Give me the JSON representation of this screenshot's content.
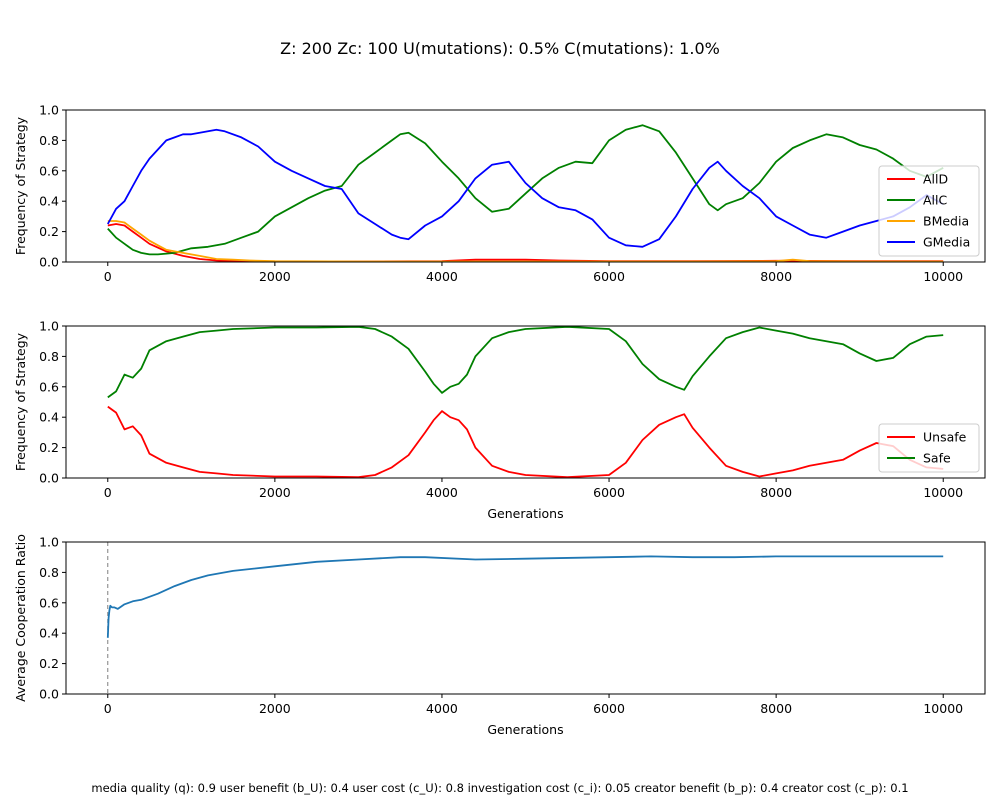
{
  "figure": {
    "title": "Z: 200  Zc: 100  U(mutations): 0.5%  C(mutations): 1.0%",
    "footer": "media quality (q): 0.9  user benefit (b_U): 0.4  user cost (c_U): 0.8  investigation cost (c_i): 0.05  creator benefit (b_p): 0.4  creator cost (c_p): 0.1"
  },
  "chart_data": [
    {
      "type": "line",
      "ylabel": "Frequency of Strategy",
      "xlabel": "",
      "xlim": [
        -500,
        10500
      ],
      "ylim": [
        0,
        1
      ],
      "xticks": [
        0,
        2000,
        4000,
        6000,
        8000,
        10000
      ],
      "yticks": [
        0.0,
        0.2,
        0.4,
        0.6,
        0.8,
        1.0
      ],
      "legend": "right",
      "series": [
        {
          "name": "AllD",
          "color": "#ff0000",
          "x": [
            0,
            100,
            200,
            300,
            400,
            500,
            700,
            900,
            1100,
            1300,
            1500,
            2000,
            3000,
            4000,
            4400,
            5000,
            5400,
            6000,
            7000,
            8000,
            9000,
            10000
          ],
          "y": [
            0.24,
            0.25,
            0.24,
            0.2,
            0.16,
            0.12,
            0.07,
            0.04,
            0.02,
            0.01,
            0.005,
            0.003,
            0.003,
            0.005,
            0.015,
            0.015,
            0.01,
            0.005,
            0.005,
            0.008,
            0.005,
            0.005
          ]
        },
        {
          "name": "AllC",
          "color": "#008000",
          "x": [
            0,
            100,
            200,
            300,
            400,
            500,
            600,
            800,
            1000,
            1200,
            1400,
            1600,
            1800,
            2000,
            2200,
            2400,
            2600,
            2800,
            3000,
            3200,
            3400,
            3500,
            3600,
            3800,
            4000,
            4200,
            4400,
            4600,
            4800,
            5000,
            5200,
            5400,
            5600,
            5800,
            6000,
            6200,
            6400,
            6600,
            6800,
            7000,
            7200,
            7300,
            7400,
            7600,
            7800,
            8000,
            8200,
            8400,
            8600,
            8800,
            9000,
            9200,
            9400,
            9600,
            9800,
            10000
          ],
          "y": [
            0.22,
            0.16,
            0.12,
            0.08,
            0.06,
            0.05,
            0.05,
            0.06,
            0.09,
            0.1,
            0.12,
            0.16,
            0.2,
            0.3,
            0.36,
            0.42,
            0.47,
            0.5,
            0.64,
            0.72,
            0.8,
            0.84,
            0.85,
            0.78,
            0.66,
            0.55,
            0.42,
            0.33,
            0.35,
            0.45,
            0.55,
            0.62,
            0.66,
            0.65,
            0.8,
            0.87,
            0.9,
            0.86,
            0.72,
            0.55,
            0.38,
            0.34,
            0.38,
            0.42,
            0.52,
            0.66,
            0.75,
            0.8,
            0.84,
            0.82,
            0.77,
            0.74,
            0.68,
            0.6,
            0.56,
            0.62
          ]
        },
        {
          "name": "BMedia",
          "color": "#ffa500",
          "x": [
            0,
            100,
            200,
            300,
            400,
            500,
            600,
            700,
            800,
            900,
            1000,
            1100,
            1300,
            1500,
            1700,
            2000,
            3000,
            4000,
            5000,
            6000,
            7000,
            8000,
            8200,
            8400,
            9000,
            10000
          ],
          "y": [
            0.27,
            0.27,
            0.26,
            0.22,
            0.18,
            0.14,
            0.11,
            0.08,
            0.07,
            0.06,
            0.05,
            0.04,
            0.02,
            0.015,
            0.01,
            0.005,
            0.003,
            0.003,
            0.003,
            0.003,
            0.003,
            0.005,
            0.015,
            0.005,
            0.003,
            0.003
          ]
        },
        {
          "name": "GMedia",
          "color": "#0000ff",
          "x": [
            0,
            100,
            200,
            300,
            400,
            500,
            600,
            700,
            800,
            900,
            1000,
            1100,
            1200,
            1300,
            1400,
            1600,
            1800,
            2000,
            2200,
            2400,
            2600,
            2800,
            3000,
            3200,
            3400,
            3500,
            3600,
            3800,
            4000,
            4200,
            4400,
            4600,
            4800,
            5000,
            5200,
            5400,
            5600,
            5800,
            6000,
            6200,
            6400,
            6600,
            6800,
            7000,
            7200,
            7300,
            7400,
            7600,
            7800,
            8000,
            8200,
            8400,
            8600,
            8800,
            9000,
            9200,
            9400,
            9600,
            9800,
            10000
          ],
          "y": [
            0.25,
            0.35,
            0.4,
            0.5,
            0.6,
            0.68,
            0.74,
            0.8,
            0.82,
            0.84,
            0.84,
            0.85,
            0.86,
            0.87,
            0.86,
            0.82,
            0.76,
            0.66,
            0.6,
            0.55,
            0.5,
            0.48,
            0.32,
            0.25,
            0.18,
            0.16,
            0.15,
            0.24,
            0.3,
            0.4,
            0.55,
            0.64,
            0.66,
            0.52,
            0.42,
            0.36,
            0.34,
            0.28,
            0.16,
            0.11,
            0.1,
            0.15,
            0.3,
            0.48,
            0.62,
            0.66,
            0.6,
            0.5,
            0.42,
            0.3,
            0.24,
            0.18,
            0.16,
            0.2,
            0.24,
            0.27,
            0.3,
            0.36,
            0.44,
            0.38
          ]
        }
      ]
    },
    {
      "type": "line",
      "ylabel": "Frequency of Strategy",
      "xlabel": "Generations",
      "xlim": [
        -500,
        10500
      ],
      "ylim": [
        0,
        1
      ],
      "xticks": [
        0,
        2000,
        4000,
        6000,
        8000,
        10000
      ],
      "yticks": [
        0.0,
        0.2,
        0.4,
        0.6,
        0.8,
        1.0
      ],
      "legend": "right",
      "series": [
        {
          "name": "Unsafe",
          "color": "#ff0000",
          "x": [
            0,
            100,
            200,
            300,
            400,
            500,
            700,
            900,
            1100,
            1300,
            1500,
            2000,
            2500,
            3000,
            3200,
            3400,
            3600,
            3800,
            3900,
            4000,
            4100,
            4200,
            4300,
            4400,
            4600,
            4800,
            5000,
            5500,
            6000,
            6200,
            6400,
            6600,
            6800,
            6900,
            7000,
            7200,
            7400,
            7600,
            7800,
            8000,
            8200,
            8400,
            8600,
            8800,
            9000,
            9200,
            9400,
            9600,
            9800,
            10000
          ],
          "y": [
            0.47,
            0.43,
            0.32,
            0.34,
            0.28,
            0.16,
            0.1,
            0.07,
            0.04,
            0.03,
            0.02,
            0.01,
            0.01,
            0.005,
            0.02,
            0.07,
            0.15,
            0.3,
            0.38,
            0.44,
            0.4,
            0.38,
            0.32,
            0.2,
            0.08,
            0.04,
            0.02,
            0.005,
            0.02,
            0.1,
            0.25,
            0.35,
            0.4,
            0.42,
            0.33,
            0.2,
            0.08,
            0.04,
            0.01,
            0.03,
            0.05,
            0.08,
            0.1,
            0.12,
            0.18,
            0.23,
            0.21,
            0.12,
            0.07,
            0.06
          ]
        },
        {
          "name": "Safe",
          "color": "#008000",
          "x": [
            0,
            100,
            200,
            300,
            400,
            500,
            700,
            900,
            1100,
            1300,
            1500,
            2000,
            2500,
            3000,
            3200,
            3400,
            3600,
            3800,
            3900,
            4000,
            4100,
            4200,
            4300,
            4400,
            4600,
            4800,
            5000,
            5500,
            6000,
            6200,
            6400,
            6600,
            6800,
            6900,
            7000,
            7200,
            7400,
            7600,
            7800,
            8000,
            8200,
            8400,
            8600,
            8800,
            9000,
            9200,
            9400,
            9600,
            9800,
            10000
          ],
          "y": [
            0.53,
            0.57,
            0.68,
            0.66,
            0.72,
            0.84,
            0.9,
            0.93,
            0.96,
            0.97,
            0.98,
            0.99,
            0.99,
            0.995,
            0.98,
            0.93,
            0.85,
            0.7,
            0.62,
            0.56,
            0.6,
            0.62,
            0.68,
            0.8,
            0.92,
            0.96,
            0.98,
            0.995,
            0.98,
            0.9,
            0.75,
            0.65,
            0.6,
            0.58,
            0.67,
            0.8,
            0.92,
            0.96,
            0.99,
            0.97,
            0.95,
            0.92,
            0.9,
            0.88,
            0.82,
            0.77,
            0.79,
            0.88,
            0.93,
            0.94
          ]
        }
      ]
    },
    {
      "type": "line",
      "ylabel": "Average Cooperation Ratio",
      "xlabel": "Generations",
      "xlim": [
        -500,
        10500
      ],
      "ylim": [
        0,
        1
      ],
      "xticks": [
        0,
        2000,
        4000,
        6000,
        8000,
        10000
      ],
      "yticks": [
        0.0,
        0.2,
        0.4,
        0.6,
        0.8,
        1.0
      ],
      "annotations": [
        {
          "type": "vline",
          "x": 0,
          "style": "dashed",
          "color": "#808080"
        }
      ],
      "series": [
        {
          "color": "#1f77b4",
          "x": [
            0,
            10,
            20,
            30,
            50,
            80,
            120,
            200,
            300,
            400,
            600,
            800,
            1000,
            1200,
            1500,
            2000,
            2500,
            3000,
            3500,
            3800,
            4400,
            5000,
            6000,
            6500,
            7000,
            7500,
            8000,
            9000,
            10000
          ],
          "y": [
            0.37,
            0.5,
            0.55,
            0.58,
            0.57,
            0.57,
            0.56,
            0.59,
            0.61,
            0.62,
            0.66,
            0.71,
            0.75,
            0.78,
            0.81,
            0.84,
            0.87,
            0.885,
            0.9,
            0.9,
            0.885,
            0.89,
            0.9,
            0.905,
            0.9,
            0.9,
            0.905,
            0.905,
            0.905
          ]
        }
      ]
    }
  ]
}
